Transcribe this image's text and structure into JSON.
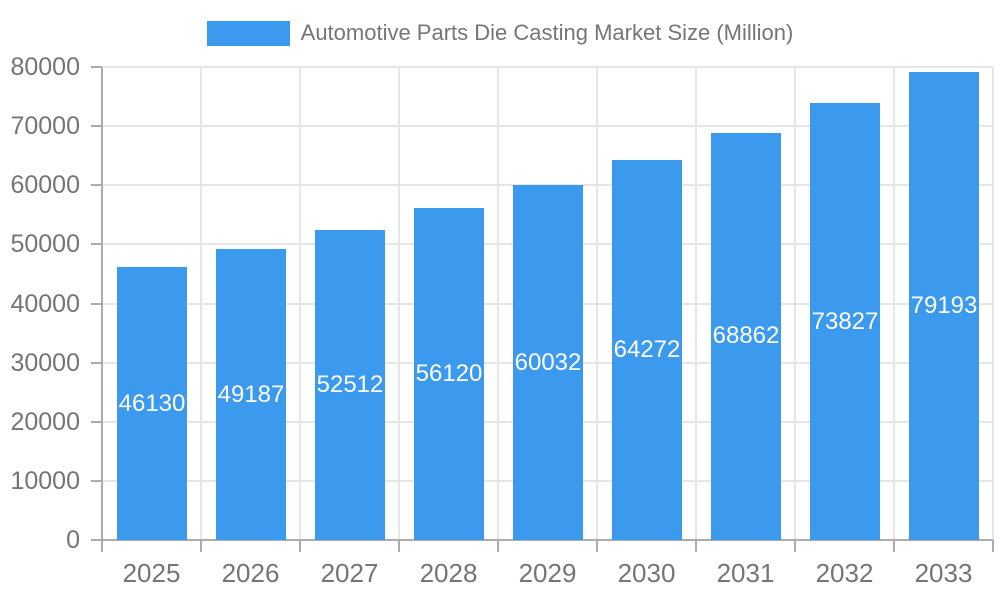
{
  "legend": {
    "label": "Automotive Parts Die Casting Market Size (Million)"
  },
  "chart_data": {
    "type": "bar",
    "title": "Automotive Parts Die Casting Market Size (Million)",
    "series_name": "Automotive Parts Die Casting Market Size (Million)",
    "categories": [
      "2025",
      "2026",
      "2027",
      "2028",
      "2029",
      "2030",
      "2031",
      "2032",
      "2033"
    ],
    "values": [
      46130,
      49187,
      52512,
      56120,
      60032,
      64272,
      68862,
      73827,
      79193
    ],
    "xlabel": "",
    "ylabel": "",
    "ylim": [
      0,
      80000
    ],
    "y_ticks": [
      0,
      10000,
      20000,
      30000,
      40000,
      50000,
      60000,
      70000,
      80000
    ],
    "grid": true,
    "legend_position": "top-center",
    "bar_labels_inside": true,
    "colors": {
      "bar": "#3B99EE",
      "bar_label_text": "#FFFFFF",
      "axis_text": "#757575",
      "grid_line": "#E6E6E6",
      "axis_line": "#ACACAC",
      "background": "#FFFFFF"
    }
  }
}
